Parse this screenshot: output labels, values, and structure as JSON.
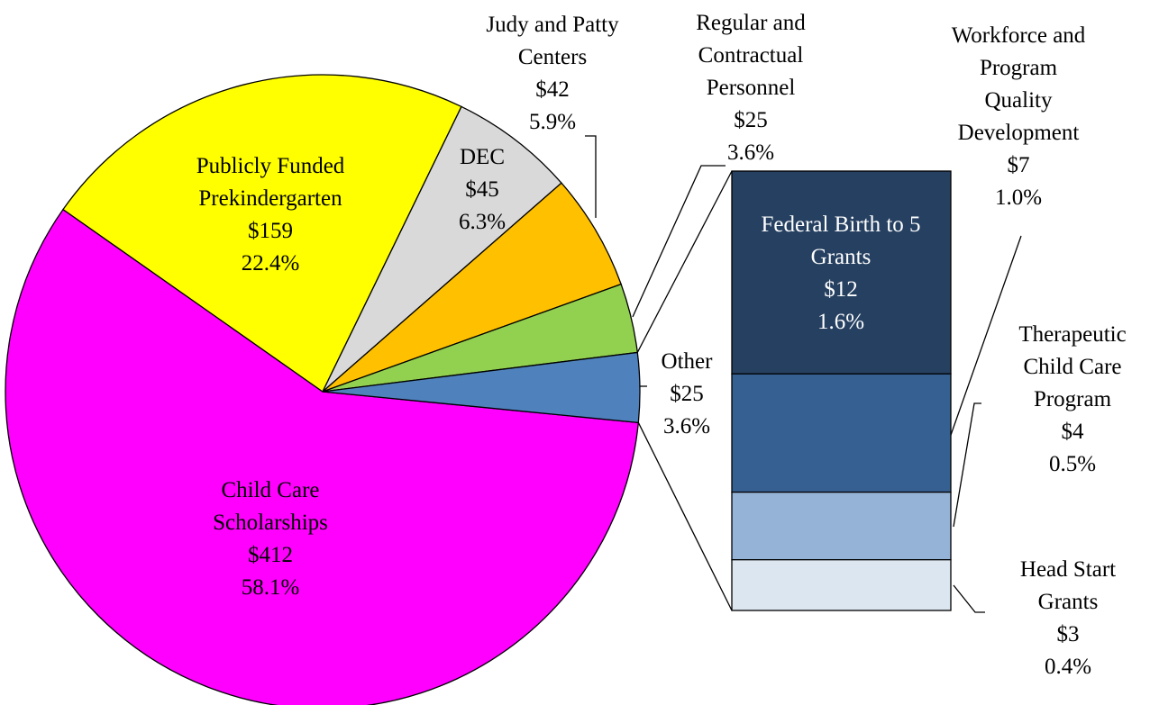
{
  "chart_data": {
    "type": "bar-of-pie",
    "pie": {
      "categories": [
        "Child Care Scholarships",
        "Publicly Funded Prekindergarten",
        "DEC",
        "Judy and Patty Centers",
        "Regular and Contractual Personnel",
        "Other"
      ],
      "values": [
        412,
        159,
        45,
        42,
        25,
        25
      ],
      "value_labels": [
        "$412",
        "$159",
        "$45",
        "$42",
        "$25",
        "$25"
      ],
      "percents": [
        58.1,
        22.4,
        6.3,
        5.9,
        3.6,
        3.6
      ],
      "percent_labels": [
        "58.1%",
        "22.4%",
        "6.3%",
        "5.9%",
        "3.6%",
        "3.6%"
      ],
      "colors": [
        "#ff00ff",
        "#ffff00",
        "#d9d9d9",
        "#ffc000",
        "#92d050",
        "#4f81bd"
      ]
    },
    "bar": {
      "categories": [
        "Federal Birth to 5 Grants",
        "Workforce and Program Quality Development",
        "Therapeutic Child Care Program",
        "Head Start Grants"
      ],
      "values": [
        12,
        7,
        4,
        3
      ],
      "value_labels": [
        "$12",
        "$7",
        "$4",
        "$3"
      ],
      "percents": [
        1.6,
        1.0,
        0.5,
        0.4
      ],
      "percent_labels": [
        "1.6%",
        "1.0%",
        "0.5%",
        "0.4%"
      ],
      "colors": [
        "#264061",
        "#366092",
        "#95b3d7",
        "#dce6f1"
      ]
    }
  }
}
